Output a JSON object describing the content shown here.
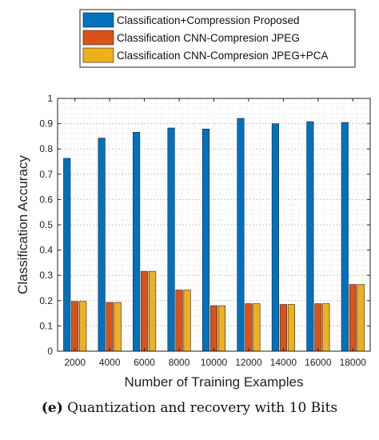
{
  "chart_data": {
    "type": "bar",
    "title": "",
    "xlabel": "Number of Training Examples",
    "ylabel": "Classification Accuracy",
    "ylim": [
      0,
      1
    ],
    "yticks": [
      "0",
      "0.1",
      "0.2",
      "0.3",
      "0.4",
      "0.5",
      "0.6",
      "0.7",
      "0.8",
      "0.9",
      "1"
    ],
    "categories": [
      "2000",
      "4000",
      "6000",
      "8000",
      "10000",
      "12000",
      "14000",
      "16000",
      "18000"
    ],
    "grid": true,
    "legend_position": "top",
    "series": [
      {
        "name": "Classification+Compression Proposed",
        "color": "#0072BD",
        "values": [
          0.763,
          0.843,
          0.866,
          0.883,
          0.879,
          0.921,
          0.9,
          0.908,
          0.905
        ]
      },
      {
        "name": "Classification CNN-Compresion JPEG",
        "color": "#D95319",
        "values": [
          0.197,
          0.193,
          0.316,
          0.242,
          0.18,
          0.188,
          0.185,
          0.188,
          0.264
        ]
      },
      {
        "name": "Classification CNN-Compresion JPEG+PCA",
        "color": "#EDB120",
        "values": [
          0.197,
          0.193,
          0.316,
          0.242,
          0.18,
          0.188,
          0.185,
          0.188,
          0.264
        ]
      }
    ]
  },
  "caption": {
    "tag": "(e)",
    "text": " Quantization and recovery with 10 Bits"
  }
}
